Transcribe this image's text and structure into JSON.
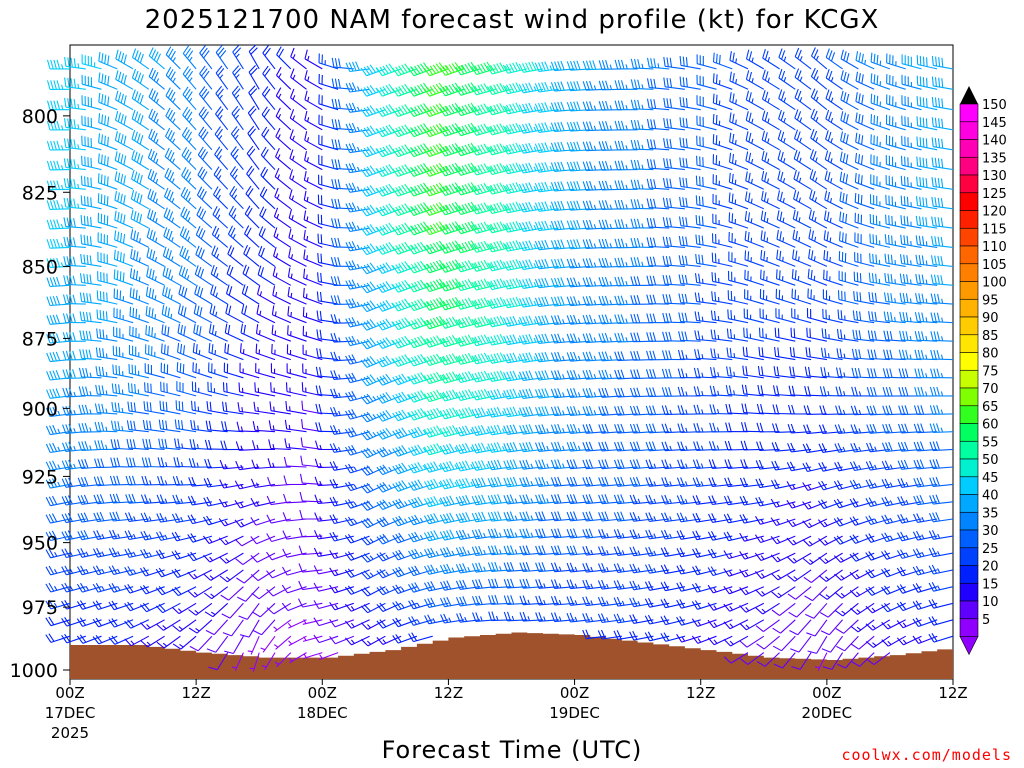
{
  "chart_data": {
    "type": "wind-barb-profile",
    "title": "2025121700 NAM forecast wind profile (kt) for KCGX",
    "xlabel": "Forecast Time (UTC)",
    "ylabel": "",
    "credit": "coolwx.com/models",
    "y_axis": {
      "scale": "pressure (hPa)",
      "range": [
        1000,
        780
      ],
      "ticks": [
        "800",
        "825",
        "850",
        "875",
        "900",
        "925",
        "950",
        "975",
        "1000"
      ]
    },
    "x_axis": {
      "range_hours": [
        0,
        84
      ],
      "ticks": [
        {
          "hour": 0,
          "label": "00Z",
          "sub1": "17DEC",
          "sub2": "2025"
        },
        {
          "hour": 12,
          "label": "12Z",
          "sub1": "",
          "sub2": ""
        },
        {
          "hour": 24,
          "label": "00Z",
          "sub1": "18DEC",
          "sub2": ""
        },
        {
          "hour": 36,
          "label": "12Z",
          "sub1": "",
          "sub2": ""
        },
        {
          "hour": 48,
          "label": "00Z",
          "sub1": "19DEC",
          "sub2": ""
        },
        {
          "hour": 60,
          "label": "12Z",
          "sub1": "",
          "sub2": ""
        },
        {
          "hour": 72,
          "label": "00Z",
          "sub1": "20DEC",
          "sub2": ""
        },
        {
          "hour": 84,
          "label": "12Z",
          "sub1": "",
          "sub2": ""
        }
      ]
    },
    "colorbar": {
      "labels": [
        "150",
        "145",
        "140",
        "135",
        "130",
        "125",
        "120",
        "115",
        "110",
        "105",
        "100",
        "95",
        "90",
        "85",
        "80",
        "75",
        "70",
        "65",
        "60",
        "55",
        "50",
        "45",
        "40",
        "35",
        "30",
        "25",
        "20",
        "15",
        "10",
        "5"
      ],
      "colors": [
        "#ff00ff",
        "#ff00e0",
        "#ff00b4",
        "#ff0080",
        "#ff0040",
        "#ff0000",
        "#ff2000",
        "#ff4400",
        "#ff6600",
        "#ff8000",
        "#ff9900",
        "#ffb300",
        "#ffcc00",
        "#ffe600",
        "#ffff00",
        "#c8ff00",
        "#80ff00",
        "#30ff20",
        "#00ff60",
        "#00ffa0",
        "#00f0d0",
        "#00ccff",
        "#00a8ff",
        "#0084ff",
        "#0060ff",
        "#0040ff",
        "#0020ff",
        "#2000ff",
        "#6000ff",
        "#9000ff"
      ]
    },
    "wind_levels_hpa": [
      1000,
      975,
      950,
      925,
      900,
      875,
      850,
      825,
      800
    ],
    "wind_speed_kt_by_hour": {
      "hours": [
        0,
        6,
        12,
        18,
        24,
        30,
        36,
        42,
        48,
        54,
        60,
        66,
        72,
        78,
        84
      ],
      "surface": [
        15,
        15,
        10,
        5,
        5,
        10,
        15,
        20,
        20,
        20,
        15,
        10,
        5,
        10,
        15
      ],
      "upper": [
        45,
        40,
        35,
        20,
        15,
        45,
        65,
        55,
        40,
        35,
        30,
        25,
        25,
        35,
        40
      ]
    },
    "wind_direction_deg_by_hour": {
      "hours": [
        0,
        6,
        12,
        18,
        24,
        30,
        36,
        42,
        48,
        54,
        60,
        66,
        72,
        78,
        84
      ],
      "surface": [
        250,
        240,
        220,
        190,
        250,
        240,
        260,
        270,
        265,
        260,
        250,
        230,
        200,
        230,
        250
      ],
      "upper": [
        270,
        300,
        320,
        330,
        300,
        250,
        250,
        255,
        265,
        270,
        280,
        300,
        310,
        290,
        280
      ]
    },
    "surface_pressure_hpa": {
      "hours": [
        0,
        6,
        12,
        18,
        24,
        30,
        36,
        42,
        48,
        54,
        60,
        66,
        72,
        78,
        84
      ],
      "values": [
        990,
        990,
        993,
        995,
        995,
        992,
        987,
        985,
        986,
        989,
        992,
        995,
        996,
        994,
        991
      ]
    }
  }
}
